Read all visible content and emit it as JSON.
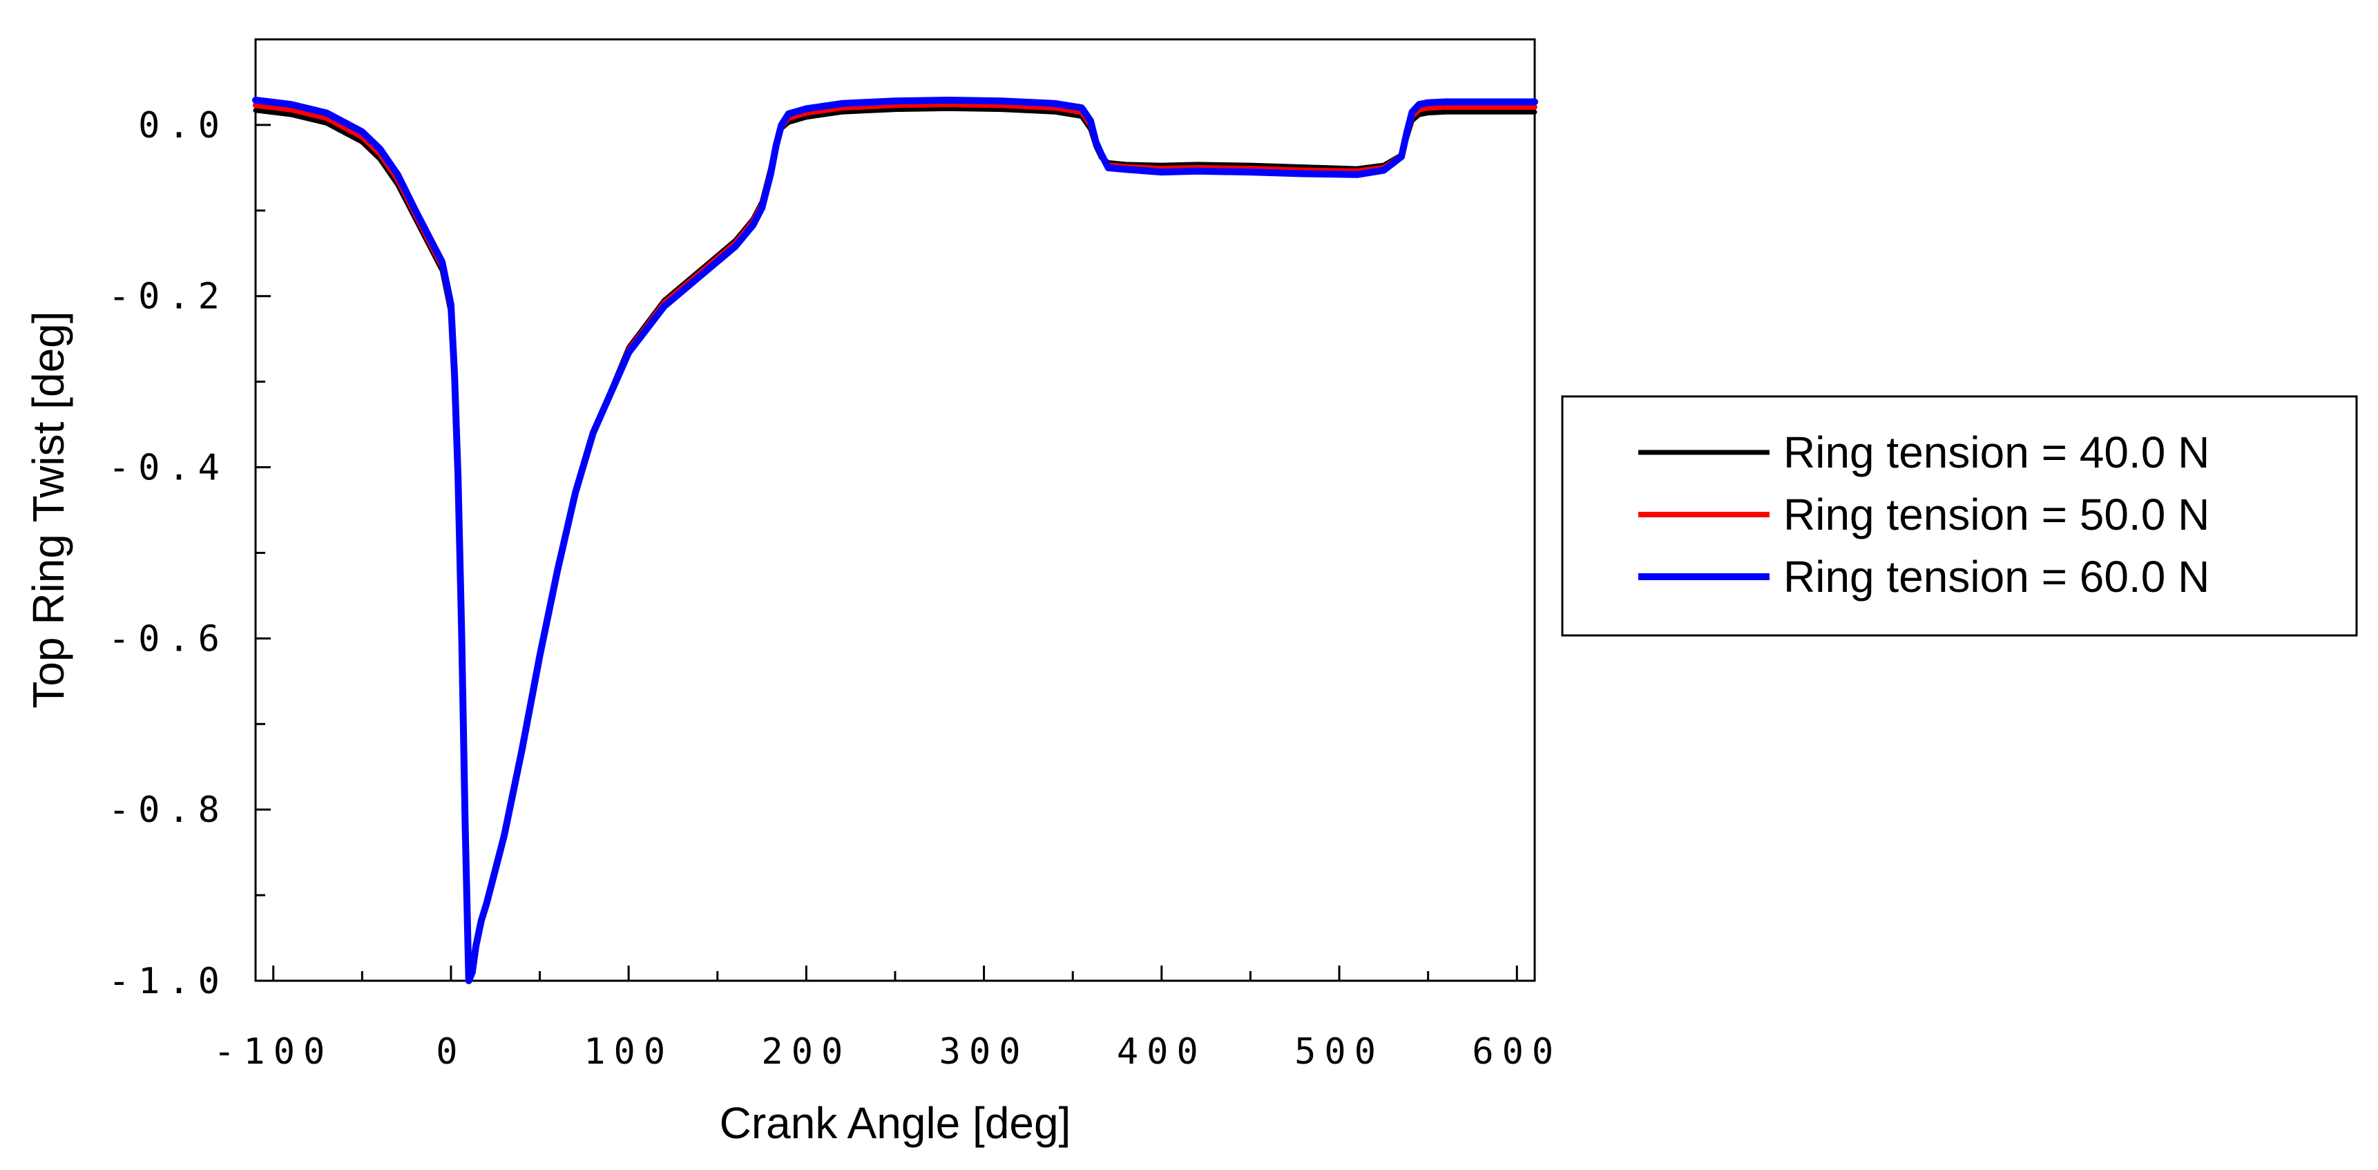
{
  "chart_data": {
    "type": "line",
    "title": "",
    "xlabel": "Crank Angle [deg]",
    "ylabel": "Top Ring Twist [deg]",
    "xlim": [
      -110,
      610
    ],
    "ylim": [
      -1.0,
      0.1
    ],
    "x_ticks": [
      -100,
      0,
      100,
      200,
      300,
      400,
      500,
      600
    ],
    "x_tick_labels": [
      "-100",
      "0",
      "100",
      "200",
      "300",
      "400",
      "500",
      "600"
    ],
    "y_ticks": [
      0.0,
      -0.2,
      -0.4,
      -0.6,
      -0.8,
      -1.0
    ],
    "y_tick_labels": [
      "0.0",
      "-0.2",
      "-0.4",
      "-0.6",
      "-0.8",
      "-1.0"
    ],
    "grid": false,
    "legend_position": "right",
    "x": [
      -110,
      -90,
      -70,
      -50,
      -40,
      -30,
      -20,
      -10,
      -5,
      0,
      2,
      4,
      6,
      8,
      10,
      12,
      14,
      17,
      20,
      25,
      30,
      40,
      50,
      60,
      70,
      80,
      100,
      120,
      140,
      160,
      170,
      175,
      180,
      183,
      186,
      190,
      200,
      220,
      250,
      280,
      310,
      340,
      355,
      360,
      363,
      366,
      370,
      380,
      400,
      420,
      450,
      480,
      510,
      525,
      535,
      538,
      541,
      545,
      550,
      560,
      580,
      610
    ],
    "series": [
      {
        "name": "Ring tension = 40.0 N",
        "color": "#000000",
        "values": [
          0.017,
          0.012,
          0.002,
          -0.02,
          -0.04,
          -0.07,
          -0.11,
          -0.15,
          -0.17,
          -0.22,
          -0.3,
          -0.42,
          -0.6,
          -0.82,
          -1.0,
          -0.99,
          -0.96,
          -0.93,
          -0.91,
          -0.87,
          -0.83,
          -0.73,
          -0.62,
          -0.52,
          -0.43,
          -0.36,
          -0.26,
          -0.205,
          -0.17,
          -0.135,
          -0.11,
          -0.09,
          -0.05,
          -0.02,
          -0.004,
          0.003,
          0.009,
          0.015,
          0.018,
          0.019,
          0.018,
          0.015,
          0.01,
          -0.005,
          -0.025,
          -0.038,
          -0.044,
          -0.046,
          -0.047,
          -0.046,
          -0.047,
          -0.049,
          -0.051,
          -0.047,
          -0.035,
          -0.015,
          0.005,
          0.012,
          0.014,
          0.015,
          0.015,
          0.015
        ]
      },
      {
        "name": "Ring tension = 50.0 N",
        "color": "#ff0000",
        "values": [
          0.023,
          0.018,
          0.008,
          -0.014,
          -0.034,
          -0.064,
          -0.105,
          -0.145,
          -0.165,
          -0.215,
          -0.296,
          -0.416,
          -0.597,
          -0.82,
          -1.0,
          -0.99,
          -0.96,
          -0.93,
          -0.91,
          -0.87,
          -0.83,
          -0.73,
          -0.62,
          -0.52,
          -0.43,
          -0.36,
          -0.263,
          -0.208,
          -0.173,
          -0.138,
          -0.113,
          -0.093,
          -0.053,
          -0.022,
          -0.002,
          0.008,
          0.014,
          0.02,
          0.023,
          0.024,
          0.023,
          0.02,
          0.015,
          0.0,
          -0.022,
          -0.036,
          -0.047,
          -0.049,
          -0.051,
          -0.05,
          -0.051,
          -0.053,
          -0.054,
          -0.05,
          -0.036,
          -0.012,
          0.01,
          0.018,
          0.02,
          0.021,
          0.021,
          0.021
        ]
      },
      {
        "name": "Ring tension = 60.0 N",
        "color": "#0000ff",
        "values": [
          0.029,
          0.024,
          0.014,
          -0.008,
          -0.028,
          -0.058,
          -0.1,
          -0.14,
          -0.16,
          -0.21,
          -0.292,
          -0.412,
          -0.594,
          -0.818,
          -1.0,
          -0.99,
          -0.96,
          -0.93,
          -0.91,
          -0.87,
          -0.83,
          -0.73,
          -0.62,
          -0.52,
          -0.43,
          -0.36,
          -0.266,
          -0.212,
          -0.177,
          -0.142,
          -0.117,
          -0.097,
          -0.057,
          -0.024,
          0.0,
          0.013,
          0.019,
          0.025,
          0.028,
          0.029,
          0.028,
          0.025,
          0.02,
          0.005,
          -0.02,
          -0.034,
          -0.05,
          -0.052,
          -0.055,
          -0.054,
          -0.055,
          -0.057,
          -0.058,
          -0.053,
          -0.037,
          -0.009,
          0.015,
          0.024,
          0.026,
          0.027,
          0.027,
          0.027
        ]
      }
    ]
  }
}
